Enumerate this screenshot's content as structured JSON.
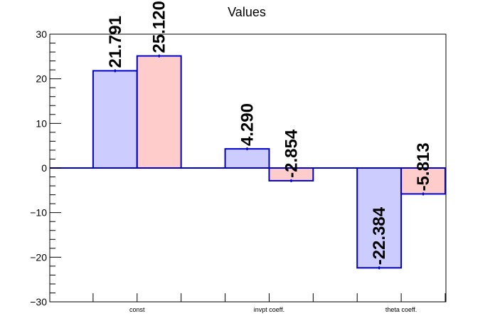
{
  "chart_data": {
    "type": "bar",
    "title": "Values",
    "xlabel": "",
    "ylabel": "",
    "categories": [
      "const",
      "invpt coeff.",
      "theta coeff."
    ],
    "series": [
      {
        "values": [
          21.791,
          4.29,
          -22.384
        ],
        "labels": [
          "21.791",
          "4.290",
          "-22.384"
        ],
        "color": "#ccccff"
      },
      {
        "values": [
          25.12,
          -2.854,
          -5.813
        ],
        "labels": [
          "25.120",
          "-2.854",
          "-5.813"
        ],
        "color": "#ffcccc"
      }
    ],
    "ylim": [
      -30,
      30
    ],
    "yticks": [
      -30,
      -20,
      -10,
      0,
      10,
      20,
      30
    ],
    "ytick_labels": [
      "−30",
      "−20",
      "−10",
      "0",
      "10",
      "20",
      "30"
    ],
    "bar_edge_color": "#0000cc",
    "grid": false,
    "legend": "none"
  }
}
